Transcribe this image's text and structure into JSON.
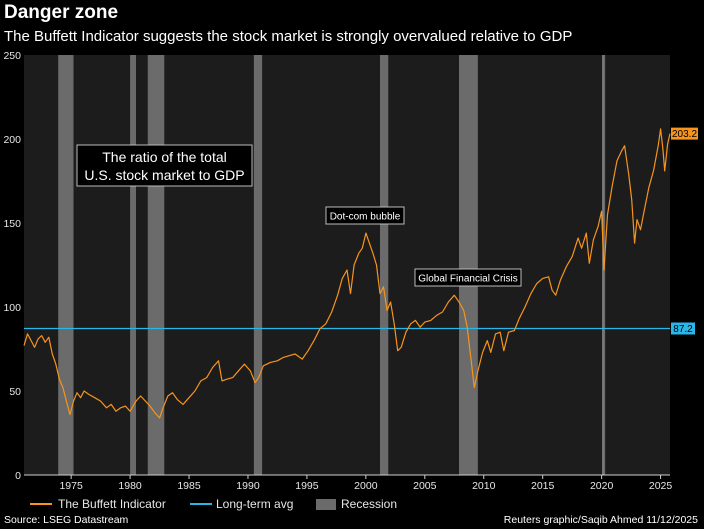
{
  "header": {
    "title": "Danger zone",
    "subtitle": "The Buffett Indicator suggests the stock market is strongly overvalued relative to GDP"
  },
  "footer": {
    "source": "Source: LSEG Datastream",
    "credit": "Reuters graphic/Saqib Ahmed 11/12/2025"
  },
  "colors": {
    "background": "#000000",
    "plot_background": "#1c1c1c",
    "indicator": "#f7941d",
    "average": "#29b6e8",
    "recession": "#6b6b6b",
    "reference_line": "#9a9a9a"
  },
  "chart_data": {
    "type": "line",
    "title": "Danger zone",
    "xlabel": "",
    "ylabel": "",
    "xlim": [
      1971,
      2025.8
    ],
    "ylim": [
      0,
      250
    ],
    "x_ticks": [
      1975,
      1980,
      1985,
      1990,
      1995,
      2000,
      2005,
      2010,
      2015,
      2020,
      2025
    ],
    "y_ticks": [
      0,
      50,
      100,
      150,
      200,
      250
    ],
    "grid": false,
    "legend_position": "bottom",
    "series": [
      {
        "name": "The Buffett Indicator",
        "color": "#f7941d",
        "points": [
          [
            1971.0,
            77
          ],
          [
            1971.3,
            84
          ],
          [
            1971.6,
            80
          ],
          [
            1971.9,
            76
          ],
          [
            1972.2,
            81
          ],
          [
            1972.5,
            83
          ],
          [
            1972.8,
            79
          ],
          [
            1973.1,
            82
          ],
          [
            1973.4,
            72
          ],
          [
            1973.7,
            66
          ],
          [
            1974.0,
            57
          ],
          [
            1974.3,
            52
          ],
          [
            1974.6,
            44
          ],
          [
            1974.9,
            36
          ],
          [
            1975.2,
            44
          ],
          [
            1975.5,
            49
          ],
          [
            1975.8,
            46
          ],
          [
            1976.1,
            50
          ],
          [
            1976.5,
            48
          ],
          [
            1977.0,
            46
          ],
          [
            1977.5,
            44
          ],
          [
            1978.0,
            40
          ],
          [
            1978.4,
            42
          ],
          [
            1978.8,
            38
          ],
          [
            1979.2,
            40
          ],
          [
            1979.6,
            41
          ],
          [
            1980.0,
            38
          ],
          [
            1980.5,
            44
          ],
          [
            1980.9,
            47
          ],
          [
            1981.3,
            44
          ],
          [
            1981.7,
            41
          ],
          [
            1982.1,
            37
          ],
          [
            1982.5,
            34
          ],
          [
            1982.8,
            40
          ],
          [
            1983.2,
            47
          ],
          [
            1983.6,
            49
          ],
          [
            1984.0,
            45
          ],
          [
            1984.5,
            42
          ],
          [
            1985.0,
            46
          ],
          [
            1985.5,
            50
          ],
          [
            1986.0,
            56
          ],
          [
            1986.5,
            58
          ],
          [
            1987.0,
            64
          ],
          [
            1987.5,
            68
          ],
          [
            1987.8,
            56
          ],
          [
            1988.2,
            57
          ],
          [
            1988.7,
            58
          ],
          [
            1989.2,
            62
          ],
          [
            1989.7,
            66
          ],
          [
            1990.2,
            62
          ],
          [
            1990.6,
            55
          ],
          [
            1990.9,
            58
          ],
          [
            1991.3,
            65
          ],
          [
            1991.9,
            67
          ],
          [
            1992.5,
            68
          ],
          [
            1993.0,
            70
          ],
          [
            1993.5,
            71
          ],
          [
            1994.0,
            72
          ],
          [
            1994.6,
            69
          ],
          [
            1995.1,
            74
          ],
          [
            1995.6,
            80
          ],
          [
            1996.1,
            87
          ],
          [
            1996.6,
            90
          ],
          [
            1997.1,
            97
          ],
          [
            1997.6,
            107
          ],
          [
            1998.0,
            117
          ],
          [
            1998.4,
            122
          ],
          [
            1998.7,
            108
          ],
          [
            1999.0,
            125
          ],
          [
            1999.4,
            132
          ],
          [
            1999.7,
            135
          ],
          [
            2000.0,
            144
          ],
          [
            2000.3,
            138
          ],
          [
            2000.6,
            132
          ],
          [
            2000.9,
            125
          ],
          [
            2001.2,
            108
          ],
          [
            2001.5,
            112
          ],
          [
            2001.8,
            98
          ],
          [
            2002.1,
            103
          ],
          [
            2002.4,
            90
          ],
          [
            2002.7,
            74
          ],
          [
            2003.0,
            76
          ],
          [
            2003.4,
            85
          ],
          [
            2003.8,
            90
          ],
          [
            2004.2,
            92
          ],
          [
            2004.6,
            88
          ],
          [
            2005.0,
            91
          ],
          [
            2005.5,
            92
          ],
          [
            2006.0,
            95
          ],
          [
            2006.5,
            97
          ],
          [
            2007.0,
            103
          ],
          [
            2007.5,
            107
          ],
          [
            2007.9,
            103
          ],
          [
            2008.3,
            98
          ],
          [
            2008.6,
            88
          ],
          [
            2008.9,
            70
          ],
          [
            2009.2,
            52
          ],
          [
            2009.5,
            62
          ],
          [
            2009.9,
            73
          ],
          [
            2010.3,
            80
          ],
          [
            2010.6,
            73
          ],
          [
            2011.0,
            84
          ],
          [
            2011.4,
            85
          ],
          [
            2011.7,
            74
          ],
          [
            2012.1,
            85
          ],
          [
            2012.6,
            86
          ],
          [
            2013.0,
            93
          ],
          [
            2013.5,
            100
          ],
          [
            2014.0,
            108
          ],
          [
            2014.5,
            114
          ],
          [
            2015.0,
            117
          ],
          [
            2015.5,
            118
          ],
          [
            2015.8,
            110
          ],
          [
            2016.1,
            107
          ],
          [
            2016.5,
            116
          ],
          [
            2017.0,
            124
          ],
          [
            2017.5,
            130
          ],
          [
            2018.0,
            141
          ],
          [
            2018.3,
            135
          ],
          [
            2018.7,
            144
          ],
          [
            2018.95,
            126
          ],
          [
            2019.3,
            140
          ],
          [
            2019.7,
            148
          ],
          [
            2020.0,
            157
          ],
          [
            2020.2,
            122
          ],
          [
            2020.5,
            155
          ],
          [
            2020.9,
            172
          ],
          [
            2021.3,
            187
          ],
          [
            2021.7,
            193
          ],
          [
            2021.95,
            196
          ],
          [
            2022.3,
            179
          ],
          [
            2022.55,
            164
          ],
          [
            2022.8,
            138
          ],
          [
            2023.0,
            152
          ],
          [
            2023.3,
            146
          ],
          [
            2023.6,
            157
          ],
          [
            2024.0,
            171
          ],
          [
            2024.4,
            181
          ],
          [
            2024.8,
            196
          ],
          [
            2025.0,
            206
          ],
          [
            2025.2,
            194
          ],
          [
            2025.35,
            181
          ],
          [
            2025.6,
            197
          ],
          [
            2025.8,
            203.2
          ]
        ]
      },
      {
        "name": "Long-term avg",
        "color": "#29b6e8",
        "value": 87.2
      }
    ],
    "recessions": [
      [
        1973.9,
        1975.2
      ],
      [
        1980.0,
        1980.5
      ],
      [
        1981.5,
        1982.9
      ],
      [
        1990.5,
        1991.2
      ],
      [
        2001.2,
        2001.9
      ],
      [
        2007.9,
        2009.5
      ],
      [
        2020.1,
        2020.3
      ]
    ],
    "reference_line_x": 2020.1,
    "legend": [
      "The Buffett Indicator",
      "Long-term avg",
      "Recession"
    ],
    "end_labels": {
      "indicator": "203.2",
      "average": "87.2"
    },
    "annotations": {
      "box_line1": "The ratio of the total",
      "box_line2": "U.S. stock market to GDP",
      "dotcom": "Dot-com bubble",
      "gfc": "Global Financial Crisis"
    }
  }
}
